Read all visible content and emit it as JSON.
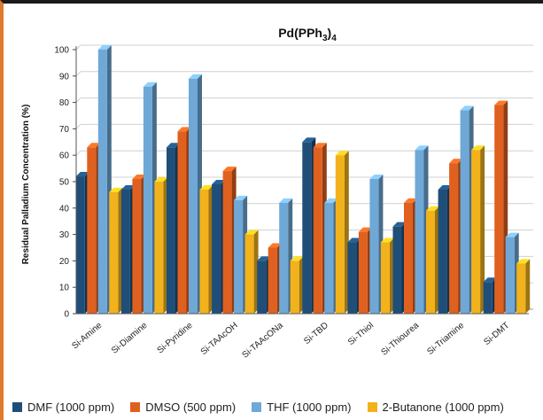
{
  "chart_data": {
    "type": "bar",
    "title": "Pd(PPh",
    "title_subscript_1": "3",
    "title_close": ")",
    "title_subscript_2": "4",
    "ylabel": "Residual Palladium Concentration (%)",
    "xlabel": "",
    "ylim": [
      0,
      100
    ],
    "yticks": [
      "0",
      "10",
      "20",
      "30",
      "40",
      "50",
      "60",
      "70",
      "80",
      "90",
      "100"
    ],
    "grid": true,
    "legend_position": "bottom",
    "categories": [
      "Si-Amine",
      "Si-Diamine",
      "Si-Pyridine",
      "Si-TAAcOH",
      "Si-TAAcONa",
      "Si-TBD",
      "Si-Thiol",
      "Si-Thiourea",
      "Si-Triamine",
      "Si-DMT"
    ],
    "series": [
      {
        "name": "DMF (1000 ppm)",
        "color": "#1f4e79",
        "values": [
          52,
          47,
          63,
          49,
          20,
          65,
          27,
          33,
          47,
          12
        ]
      },
      {
        "name": "DMSO (500 ppm)",
        "color": "#e06020",
        "values": [
          63,
          51,
          69,
          54,
          25,
          63,
          31,
          42,
          57,
          79
        ]
      },
      {
        "name": "THF (1000 ppm)",
        "color": "#6fa8d6",
        "values": [
          100,
          86,
          89,
          43,
          42,
          42,
          51,
          62,
          77,
          29
        ]
      },
      {
        "name": "2-Butanone (1000 ppm)",
        "color": "#f2b21b",
        "values": [
          46,
          50,
          47,
          30,
          20,
          60,
          27,
          39,
          62,
          19
        ]
      }
    ]
  }
}
